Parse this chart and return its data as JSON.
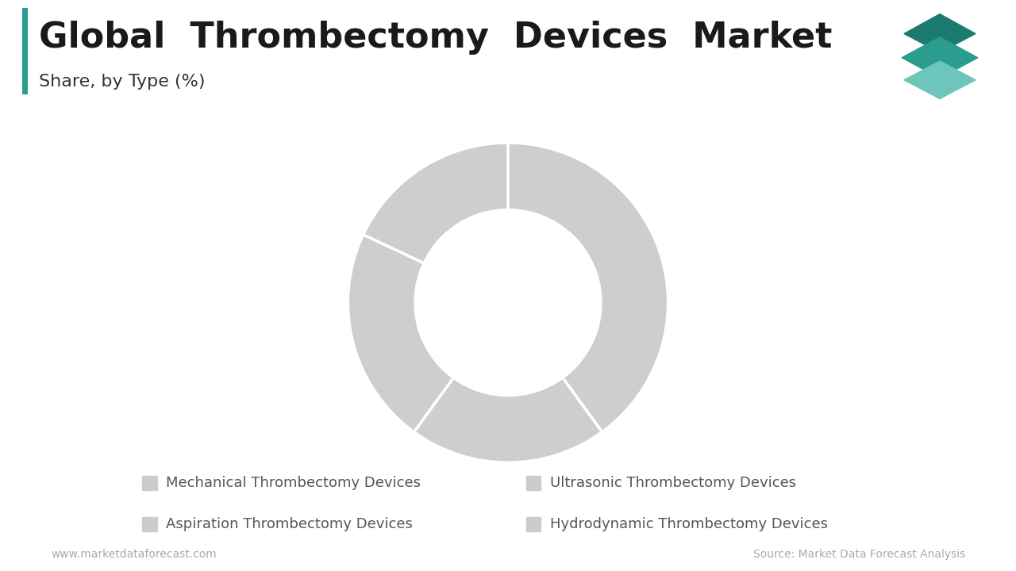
{
  "title": "Global  Thrombectomy  Devices  Market",
  "subtitle": "Share, by Type (%)",
  "segments": [
    {
      "label": "Mechanical Thrombectomy Devices",
      "value": 40
    },
    {
      "label": "Ultrasonic Thrombectomy Devices",
      "value": 20
    },
    {
      "label": "Hydrodynamic Thrombectomy Devices",
      "value": 22
    },
    {
      "label": "Aspiration Thrombectomy Devices",
      "value": 18
    }
  ],
  "donut_color": "#cecece",
  "wedge_edge_color": "#ffffff",
  "background_color": "#ffffff",
  "title_fontsize": 32,
  "subtitle_fontsize": 16,
  "legend_fontsize": 13,
  "footer_left": "www.marketdataforecast.com",
  "footer_right": "Source: Market Data Forecast Analysis",
  "footer_fontsize": 10,
  "title_bar_color": "#2a9d8f",
  "legend_marker_color": "#cccccc",
  "start_angle": 90
}
